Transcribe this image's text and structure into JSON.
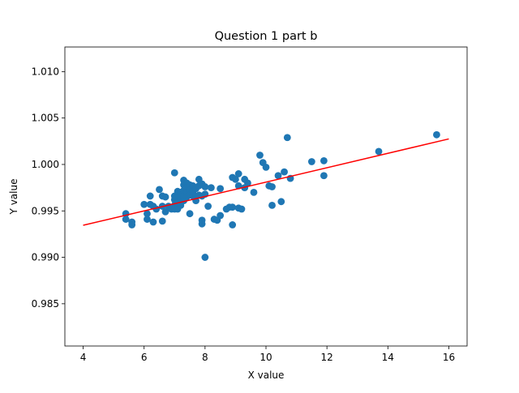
{
  "chart_data": {
    "type": "scatter",
    "title": "Question 1 part b",
    "xlabel": "X value",
    "ylabel": "Y value",
    "xlim": [
      3.4,
      16.6
    ],
    "ylim": [
      0.98045,
      1.01265
    ],
    "xticks": [
      4,
      6,
      8,
      10,
      12,
      14,
      16
    ],
    "yticks": [
      0.985,
      0.99,
      0.995,
      1.0,
      1.005,
      1.01
    ],
    "ytick_labels": [
      "0.985",
      "0.990",
      "0.995",
      "1.000",
      "1.005",
      "1.010"
    ],
    "grid": false,
    "legend": "none",
    "series": [
      {
        "kind": "points",
        "color": "#1f77b4",
        "points": [
          [
            5.4,
            0.9947
          ],
          [
            5.4,
            0.9941
          ],
          [
            5.6,
            0.9938
          ],
          [
            5.6,
            0.9935
          ],
          [
            6.0,
            0.9957
          ],
          [
            6.1,
            0.9947
          ],
          [
            6.1,
            0.9941
          ],
          [
            6.2,
            0.9966
          ],
          [
            6.2,
            0.9957
          ],
          [
            6.3,
            0.9955
          ],
          [
            6.3,
            0.9938
          ],
          [
            6.4,
            0.9952
          ],
          [
            6.5,
            0.9973
          ],
          [
            6.6,
            0.9966
          ],
          [
            6.6,
            0.9955
          ],
          [
            6.6,
            0.9939
          ],
          [
            6.7,
            0.9965
          ],
          [
            6.7,
            0.9949
          ],
          [
            6.8,
            0.9955
          ],
          [
            6.9,
            0.9952
          ],
          [
            7.0,
            0.9991
          ],
          [
            7.0,
            0.9966
          ],
          [
            7.0,
            0.9962
          ],
          [
            7.0,
            0.9956
          ],
          [
            7.0,
            0.9952
          ],
          [
            7.1,
            0.9971
          ],
          [
            7.1,
            0.9964
          ],
          [
            7.1,
            0.9959
          ],
          [
            7.1,
            0.9952
          ],
          [
            7.2,
            0.997
          ],
          [
            7.2,
            0.9965
          ],
          [
            7.2,
            0.9956
          ],
          [
            7.3,
            0.9983
          ],
          [
            7.3,
            0.9978
          ],
          [
            7.3,
            0.9972
          ],
          [
            7.3,
            0.9966
          ],
          [
            7.3,
            0.9961
          ],
          [
            7.4,
            0.998
          ],
          [
            7.4,
            0.9975
          ],
          [
            7.4,
            0.997
          ],
          [
            7.4,
            0.9965
          ],
          [
            7.5,
            0.9978
          ],
          [
            7.5,
            0.9972
          ],
          [
            7.5,
            0.9967
          ],
          [
            7.5,
            0.9947
          ],
          [
            7.6,
            0.9977
          ],
          [
            7.6,
            0.9971
          ],
          [
            7.6,
            0.9966
          ],
          [
            7.7,
            0.9974
          ],
          [
            7.7,
            0.9966
          ],
          [
            7.7,
            0.9961
          ],
          [
            7.8,
            0.9984
          ],
          [
            7.8,
            0.9977
          ],
          [
            7.8,
            0.9967
          ],
          [
            7.9,
            0.9979
          ],
          [
            7.9,
            0.9966
          ],
          [
            7.9,
            0.994
          ],
          [
            7.9,
            0.9936
          ],
          [
            8.0,
            0.9976
          ],
          [
            8.0,
            0.9968
          ],
          [
            8.0,
            0.99
          ],
          [
            8.1,
            0.9955
          ],
          [
            8.2,
            0.9975
          ],
          [
            8.3,
            0.9941
          ],
          [
            8.4,
            0.994
          ],
          [
            8.5,
            0.9974
          ],
          [
            8.5,
            0.9945
          ],
          [
            8.7,
            0.9952
          ],
          [
            8.8,
            0.9954
          ],
          [
            8.9,
            0.9986
          ],
          [
            8.9,
            0.9954
          ],
          [
            8.9,
            0.9935
          ],
          [
            9.0,
            0.9984
          ],
          [
            9.1,
            0.999
          ],
          [
            9.1,
            0.9977
          ],
          [
            9.1,
            0.9953
          ],
          [
            9.2,
            0.9952
          ],
          [
            9.3,
            0.9984
          ],
          [
            9.3,
            0.9975
          ],
          [
            9.4,
            0.998
          ],
          [
            9.6,
            0.997
          ],
          [
            9.8,
            1.001
          ],
          [
            9.9,
            1.0002
          ],
          [
            10.0,
            0.9997
          ],
          [
            10.1,
            0.9977
          ],
          [
            10.2,
            0.9976
          ],
          [
            10.2,
            0.9956
          ],
          [
            10.4,
            0.9988
          ],
          [
            10.5,
            0.996
          ],
          [
            10.6,
            0.9992
          ],
          [
            10.7,
            1.0029
          ],
          [
            10.8,
            0.9985
          ],
          [
            11.5,
            1.0003
          ],
          [
            11.9,
            1.0004
          ],
          [
            11.9,
            0.9988
          ],
          [
            13.7,
            1.0014
          ],
          [
            15.6,
            1.0032
          ]
        ]
      },
      {
        "kind": "line",
        "color": "#ff0000",
        "x": [
          4,
          16
        ],
        "y": [
          0.99345,
          1.00275
        ]
      }
    ]
  }
}
